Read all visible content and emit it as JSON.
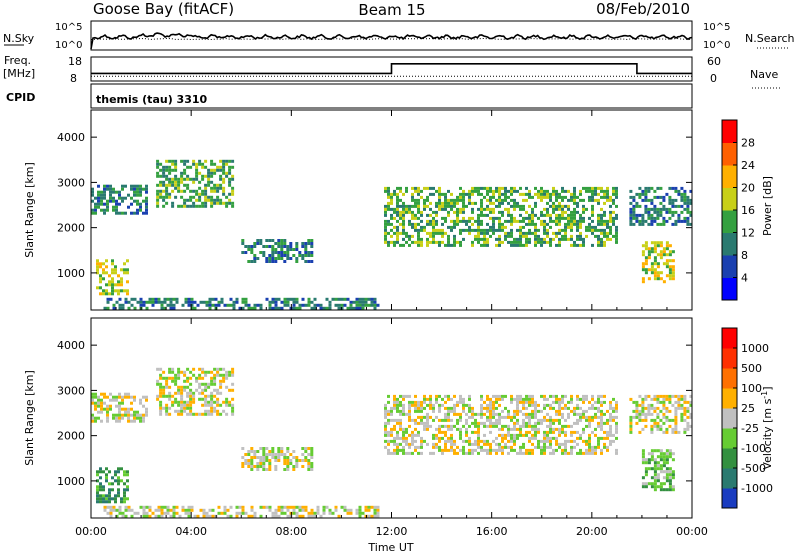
{
  "header": {
    "station": "Goose Bay (fitACF)",
    "beam": "Beam 15",
    "date": "08/Feb/2010"
  },
  "noise_panel": {
    "left_label": "N.Sky",
    "right_label": "N.Search",
    "left_ticks": [
      "10^5",
      "10^0"
    ],
    "right_ticks": [
      "10^5",
      "10^0"
    ]
  },
  "freq_panel": {
    "left_label_line1": "Freq.",
    "left_label_line2": "[MHz]",
    "left_ticks": [
      "18",
      "8"
    ],
    "right_label": "Nave",
    "right_ticks": [
      "60",
      "0"
    ],
    "freq_range": [
      8,
      18
    ],
    "freq_value": 10,
    "nave_range": [
      0,
      60
    ],
    "nave_steps": [
      {
        "from": 0.0,
        "to": 12.0,
        "value": 19
      },
      {
        "from": 12.0,
        "to": 21.8,
        "value": 43
      },
      {
        "from": 21.8,
        "to": 24.0,
        "value": 19
      }
    ]
  },
  "cpid": {
    "label": "CPID",
    "value": "themis (tau) 3310"
  },
  "chart_data": [
    {
      "type": "heatmap",
      "name": "power",
      "ylabel": "Slant Range [km]",
      "yticks": [
        "1000",
        "2000",
        "3000",
        "4000"
      ],
      "ylim": [
        180,
        4600
      ],
      "xlim": [
        0,
        24
      ],
      "xticks": [
        "00:00",
        "04:00",
        "08:00",
        "12:00",
        "16:00",
        "20:00",
        "00:00"
      ],
      "colorbar": {
        "label": "Power [dB]",
        "ticks": [
          "4",
          "8",
          "12",
          "16",
          "20",
          "24",
          "28"
        ],
        "colors": [
          "#0000ff",
          "#1a40b0",
          "#2a7a70",
          "#34a040",
          "#c8d018",
          "#ffb000",
          "#ff6000",
          "#ff0000"
        ]
      },
      "regions": [
        {
          "t0": 0.0,
          "t1": 2.2,
          "r0": 2300,
          "r1": 2950,
          "level": 2
        },
        {
          "t0": 2.6,
          "t1": 5.6,
          "r0": 2500,
          "r1": 3500,
          "level": 3
        },
        {
          "t0": 6.0,
          "t1": 8.8,
          "r0": 1250,
          "r1": 1750,
          "level": 2
        },
        {
          "t0": 0.2,
          "t1": 1.4,
          "r0": 550,
          "r1": 1300,
          "level": 4
        },
        {
          "t0": 11.7,
          "t1": 21.0,
          "r0": 1600,
          "r1": 2900,
          "level": 3
        },
        {
          "t0": 21.5,
          "t1": 24.0,
          "r0": 2100,
          "r1": 2900,
          "level": 2
        },
        {
          "t0": 22.0,
          "t1": 23.2,
          "r0": 800,
          "r1": 1700,
          "level": 4
        },
        {
          "t0": 0.5,
          "t1": 11.5,
          "r0": 200,
          "r1": 450,
          "level": 2
        }
      ]
    },
    {
      "type": "heatmap",
      "name": "velocity",
      "ylabel": "Slant Range [km]",
      "yticks": [
        "1000",
        "2000",
        "3000",
        "4000"
      ],
      "ylim": [
        180,
        4600
      ],
      "xlim": [
        0,
        24
      ],
      "xlabel": "Time UT",
      "xticks": [
        "00:00",
        "04:00",
        "08:00",
        "12:00",
        "16:00",
        "20:00",
        "00:00"
      ],
      "colorbar": {
        "label": "Velocity [m s",
        "label_sup": "-1",
        "label_end": "]",
        "ticks": [
          "1000",
          "500",
          "100",
          "25",
          "-25",
          "-100",
          "-500",
          "-1000"
        ],
        "colors": [
          "#1a3cc0",
          "#2a7a70",
          "#339040",
          "#66cc33",
          "#c0c0c0",
          "#ffb000",
          "#ff7000",
          "#ff3000",
          "#ff0000"
        ]
      },
      "regions": [
        {
          "t0": 0.0,
          "t1": 2.2,
          "r0": 2300,
          "r1": 2950,
          "level": 4
        },
        {
          "t0": 2.6,
          "t1": 5.6,
          "r0": 2500,
          "r1": 3500,
          "level": 4
        },
        {
          "t0": 6.0,
          "t1": 8.8,
          "r0": 1250,
          "r1": 1750,
          "level": 4
        },
        {
          "t0": 0.2,
          "t1": 1.4,
          "r0": 550,
          "r1": 1300,
          "level": 2
        },
        {
          "t0": 11.7,
          "t1": 21.0,
          "r0": 1600,
          "r1": 2900,
          "level": 4
        },
        {
          "t0": 21.5,
          "t1": 24.0,
          "r0": 2100,
          "r1": 2900,
          "level": 4
        },
        {
          "t0": 22.0,
          "t1": 23.2,
          "r0": 800,
          "r1": 1700,
          "level": 3
        },
        {
          "t0": 0.5,
          "t1": 11.5,
          "r0": 200,
          "r1": 450,
          "level": 4
        }
      ]
    }
  ]
}
